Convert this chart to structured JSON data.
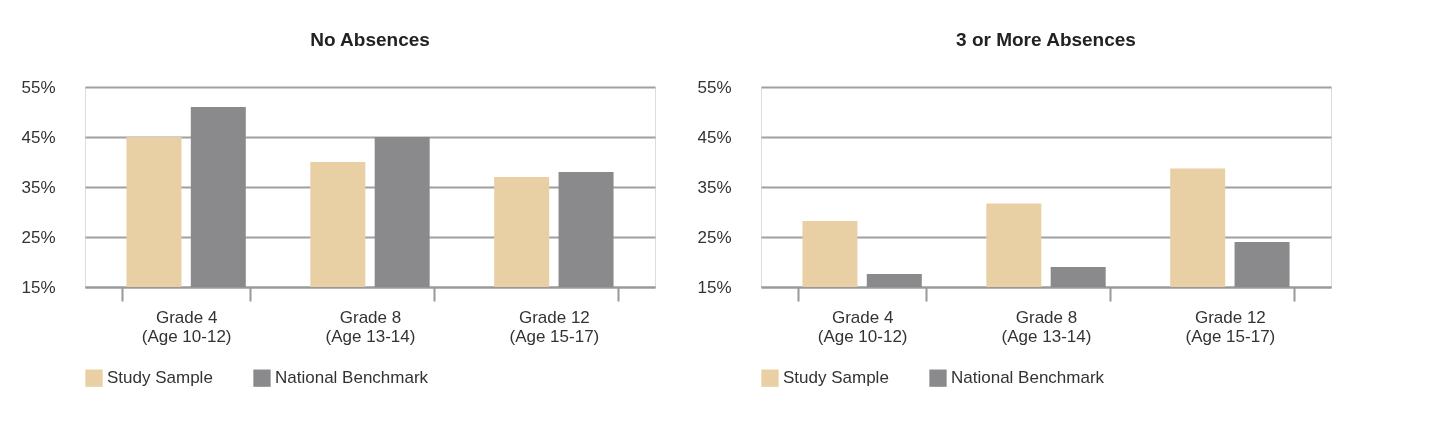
{
  "chart_data": [
    {
      "type": "bar",
      "title": "No Absences",
      "categories": [
        "Grade 4\n(Age 10-12)",
        "Grade 8\n(Age 13-14)",
        "Grade 12\n(Age 15-17)"
      ],
      "series": [
        {
          "name": "Study Sample",
          "color": "#e8cfa4",
          "values": [
            45,
            40,
            37
          ]
        },
        {
          "name": "National Benchmark",
          "color": "#8a8a8c",
          "values": [
            51,
            45,
            38
          ]
        }
      ],
      "ylim": [
        15,
        55
      ],
      "yticks": [
        {
          "value": 15,
          "label": "15%"
        },
        {
          "value": 25,
          "label": "25%"
        },
        {
          "value": 35,
          "label": "35%"
        },
        {
          "value": 45,
          "label": "45%"
        },
        {
          "value": 55,
          "label": "55%"
        }
      ],
      "grid": "y",
      "legend": "bottom"
    },
    {
      "type": "bar",
      "title": "3 or More Absences",
      "categories": [
        "Grade 4\n(Age 10-12)",
        "Grade 8\n(Age 13-14)",
        "Grade 12\n(Age 15-17)"
      ],
      "series": [
        {
          "name": "Study Sample",
          "color": "#e8cfa4",
          "values": [
            28.2,
            31.7,
            38.7
          ]
        },
        {
          "name": "National Benchmark",
          "color": "#8a8a8c",
          "values": [
            17.6,
            19.0,
            24.0
          ]
        }
      ],
      "ylim": [
        15,
        55
      ],
      "yticks": [
        {
          "value": 15,
          "label": "15%"
        },
        {
          "value": 25,
          "label": "25%"
        },
        {
          "value": 35,
          "label": "35%"
        },
        {
          "value": 45,
          "label": "45%"
        },
        {
          "value": 55,
          "label": "55%"
        }
      ],
      "grid": "y",
      "legend": "bottom"
    }
  ]
}
